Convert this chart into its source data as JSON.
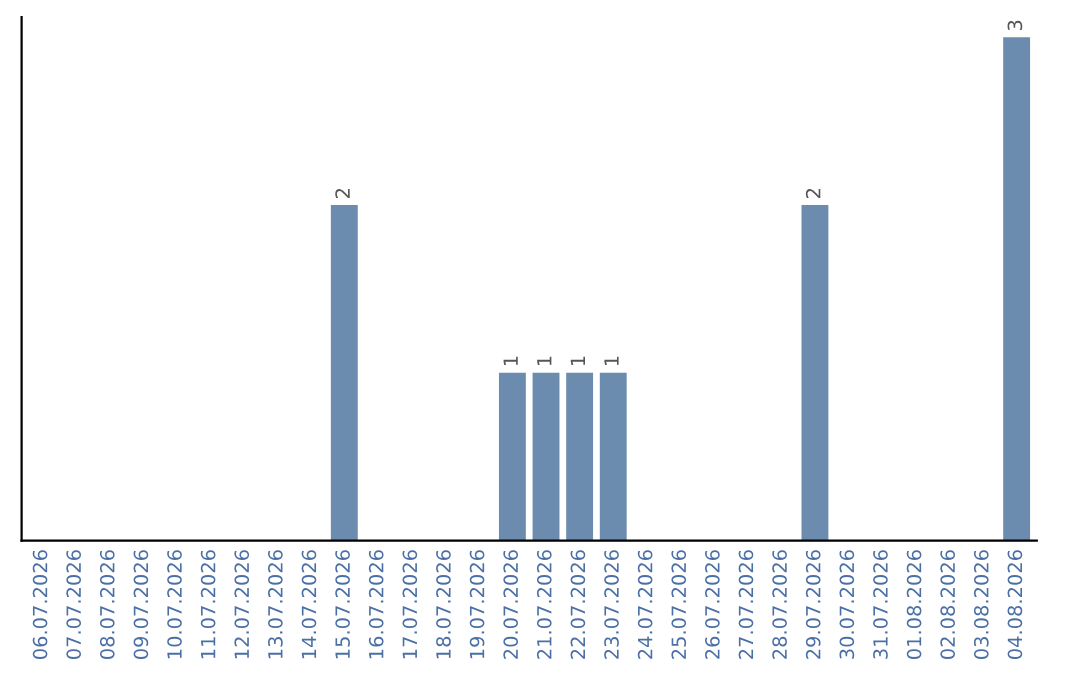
{
  "chart_data": {
    "type": "bar",
    "categories": [
      "06.07.2026",
      "07.07.2026",
      "08.07.2026",
      "09.07.2026",
      "10.07.2026",
      "11.07.2026",
      "12.07.2026",
      "13.07.2026",
      "14.07.2026",
      "15.07.2026",
      "16.07.2026",
      "17.07.2026",
      "18.07.2026",
      "19.07.2026",
      "20.07.2026",
      "21.07.2026",
      "22.07.2026",
      "23.07.2026",
      "24.07.2026",
      "25.07.2026",
      "26.07.2026",
      "27.07.2026",
      "28.07.2026",
      "29.07.2026",
      "30.07.2026",
      "31.07.2026",
      "01.08.2026",
      "02.08.2026",
      "03.08.2026",
      "04.08.2026"
    ],
    "values": [
      0,
      0,
      0,
      0,
      0,
      0,
      0,
      0,
      0,
      2,
      0,
      0,
      0,
      0,
      1,
      1,
      1,
      1,
      0,
      0,
      0,
      0,
      0,
      2,
      0,
      0,
      0,
      0,
      0,
      3
    ],
    "value_labels": [
      null,
      null,
      null,
      null,
      null,
      null,
      null,
      null,
      null,
      "2",
      null,
      null,
      null,
      null,
      "1",
      "1",
      "1",
      "1",
      null,
      null,
      null,
      null,
      null,
      "2",
      null,
      null,
      null,
      null,
      null,
      "3"
    ],
    "color": "#6b8cae",
    "grid": false,
    "tick_labels": "x"
  }
}
